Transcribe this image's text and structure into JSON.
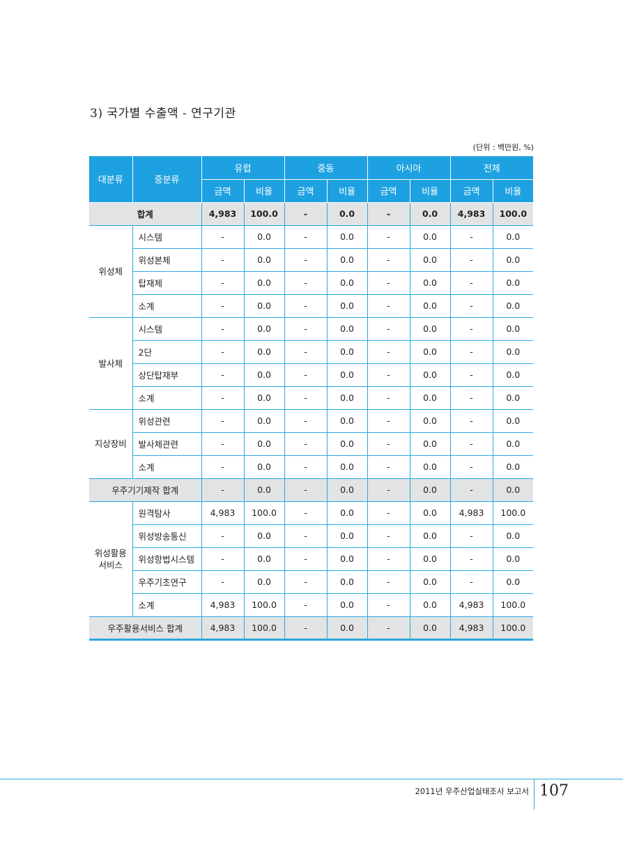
{
  "section_title": "3) 국가별 수출액 - 연구기관",
  "unit_note": "(단위 : 백만원, %)",
  "header": {
    "col_major": "대분류",
    "col_minor": "중분류",
    "regions": [
      "유럽",
      "중동",
      "아시아",
      "전체"
    ],
    "sub_amount": "금액",
    "sub_ratio": "비율"
  },
  "rows": {
    "total": {
      "label": "합계",
      "v": [
        "4,983",
        "100.0",
        "-",
        "0.0",
        "-",
        "0.0",
        "4,983",
        "100.0"
      ]
    },
    "satellite": {
      "group": "위성체",
      "items": [
        {
          "label": "시스템",
          "v": [
            "-",
            "0.0",
            "-",
            "0.0",
            "-",
            "0.0",
            "-",
            "0.0"
          ]
        },
        {
          "label": "위성본체",
          "v": [
            "-",
            "0.0",
            "-",
            "0.0",
            "-",
            "0.0",
            "-",
            "0.0"
          ]
        },
        {
          "label": "탑재체",
          "v": [
            "-",
            "0.0",
            "-",
            "0.0",
            "-",
            "0.0",
            "-",
            "0.0"
          ]
        },
        {
          "label": "소계",
          "v": [
            "-",
            "0.0",
            "-",
            "0.0",
            "-",
            "0.0",
            "-",
            "0.0"
          ]
        }
      ]
    },
    "launcher": {
      "group": "발사체",
      "items": [
        {
          "label": "시스템",
          "v": [
            "-",
            "0.0",
            "-",
            "0.0",
            "-",
            "0.0",
            "-",
            "0.0"
          ]
        },
        {
          "label": "2단",
          "v": [
            "-",
            "0.0",
            "-",
            "0.0",
            "-",
            "0.0",
            "-",
            "0.0"
          ]
        },
        {
          "label": "상단탑재부",
          "v": [
            "-",
            "0.0",
            "-",
            "0.0",
            "-",
            "0.0",
            "-",
            "0.0"
          ]
        },
        {
          "label": "소계",
          "v": [
            "-",
            "0.0",
            "-",
            "0.0",
            "-",
            "0.0",
            "-",
            "0.0"
          ]
        }
      ]
    },
    "ground": {
      "group": "지상장비",
      "items": [
        {
          "label": "위성관련",
          "v": [
            "-",
            "0.0",
            "-",
            "0.0",
            "-",
            "0.0",
            "-",
            "0.0"
          ]
        },
        {
          "label": "발사체관련",
          "v": [
            "-",
            "0.0",
            "-",
            "0.0",
            "-",
            "0.0",
            "-",
            "0.0"
          ]
        },
        {
          "label": "소계",
          "v": [
            "-",
            "0.0",
            "-",
            "0.0",
            "-",
            "0.0",
            "-",
            "0.0"
          ]
        }
      ]
    },
    "manufacturing_total": {
      "label": "우주기기제작 합계",
      "v": [
        "-",
        "0.0",
        "-",
        "0.0",
        "-",
        "0.0",
        "-",
        "0.0"
      ]
    },
    "service": {
      "group_line1": "위성활용",
      "group_line2": "서비스",
      "items": [
        {
          "label": "원격탐사",
          "v": [
            "4,983",
            "100.0",
            "-",
            "0.0",
            "-",
            "0.0",
            "4,983",
            "100.0"
          ]
        },
        {
          "label": "위성방송통신",
          "v": [
            "-",
            "0.0",
            "-",
            "0.0",
            "-",
            "0.0",
            "-",
            "0.0"
          ]
        },
        {
          "label": "위성항법시스템",
          "v": [
            "-",
            "0.0",
            "-",
            "0.0",
            "-",
            "0.0",
            "-",
            "0.0"
          ]
        },
        {
          "label": "우주기초연구",
          "v": [
            "-",
            "0.0",
            "-",
            "0.0",
            "-",
            "0.0",
            "-",
            "0.0"
          ]
        },
        {
          "label": "소계",
          "v": [
            "4,983",
            "100.0",
            "-",
            "0.0",
            "-",
            "0.0",
            "4,983",
            "100.0"
          ]
        }
      ]
    },
    "service_total": {
      "label": "우주활용서비스 합계",
      "v": [
        "4,983",
        "100.0",
        "-",
        "0.0",
        "-",
        "0.0",
        "4,983",
        "100.0"
      ]
    }
  },
  "footer": {
    "report_name": "2011년 우주산업실태조사 보고서",
    "page_number": "107"
  },
  "colors": {
    "header_blue": "#1ea1e0",
    "border_blue": "#29a8df",
    "shade_gray": "#e2e3e4"
  }
}
